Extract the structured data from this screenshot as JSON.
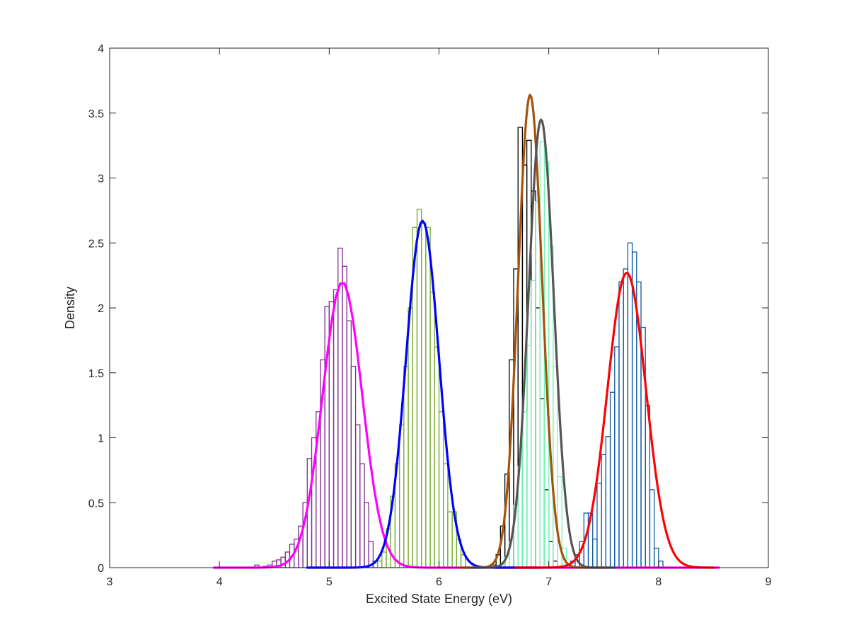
{
  "chart_data": {
    "type": "histogram",
    "title": "",
    "xlabel": "Excited State Energy (eV)",
    "ylabel": "Density",
    "xlim": [
      3,
      9
    ],
    "ylim": [
      0,
      4
    ],
    "xticks": [
      3,
      4,
      5,
      6,
      7,
      8,
      9
    ],
    "xtick_labels": [
      "3",
      "4",
      "5",
      "6",
      "7",
      "8",
      "9"
    ],
    "yticks": [
      0,
      0.5,
      1,
      1.5,
      2,
      2.5,
      3,
      3.5,
      4
    ],
    "ytick_labels": [
      "0",
      "0.5",
      "1",
      "1.5",
      "2",
      "2.5",
      "3",
      "3.5",
      "4"
    ],
    "grid": false,
    "legend": "none",
    "histograms": [
      {
        "color": "#7e2f8e",
        "x0": 4.32,
        "bin_width": 0.04,
        "values": [
          0.02,
          0.0,
          0.01,
          0.02,
          0.05,
          0.06,
          0.08,
          0.12,
          0.18,
          0.22,
          0.32,
          0.5,
          0.84,
          1.0,
          1.2,
          1.6,
          2.01,
          2.05,
          2.14,
          2.46,
          2.32,
          1.9,
          1.55,
          1.1,
          0.8,
          0.5,
          0.2,
          0.05
        ]
      },
      {
        "color": "#77ac30",
        "x0": 5.44,
        "bin_width": 0.04,
        "values": [
          0.05,
          0.12,
          0.3,
          0.55,
          0.8,
          1.1,
          1.55,
          2.0,
          2.62,
          2.76,
          2.65,
          2.62,
          2.12,
          1.7,
          1.2,
          0.8,
          0.43,
          0.43,
          0.22,
          0.1
        ]
      },
      {
        "color": "#000000",
        "x0": 6.48,
        "bin_width": 0.04,
        "values": [
          0.02,
          0.1,
          0.32,
          0.72,
          1.6,
          2.3,
          3.39,
          3.1,
          3.29,
          2.9,
          2.0,
          1.3,
          0.6,
          0.2,
          0.05
        ]
      },
      {
        "color": "#77f2b8",
        "x0": 6.56,
        "bin_width": 0.04,
        "values": [
          0.02,
          0.08,
          0.2,
          0.48,
          0.78,
          1.2,
          1.71,
          2.21,
          2.82,
          3.28,
          3.12,
          2.48,
          1.55,
          0.7,
          0.15,
          0.02
        ]
      },
      {
        "color": "#0e5aa3",
        "x0": 7.2,
        "bin_width": 0.04,
        "values": [
          0.05,
          0.1,
          0.2,
          0.42,
          0.42,
          0.22,
          0.65,
          0.87,
          1.01,
          1.35,
          1.7,
          2.2,
          2.3,
          2.5,
          2.43,
          2.2,
          1.85,
          1.25,
          0.6,
          0.15,
          0.05
        ]
      }
    ],
    "series": [
      {
        "color": "#ff00ff",
        "mu": 5.12,
        "sigma": 0.18,
        "peak": 2.2,
        "x_range": [
          3.95,
          8.55
        ]
      },
      {
        "color": "#0000ff",
        "mu": 5.85,
        "sigma": 0.15,
        "peak": 2.67,
        "x_range": [
          4.8,
          6.9
        ]
      },
      {
        "color": "#a5520b",
        "mu": 6.83,
        "sigma": 0.11,
        "peak": 3.64,
        "x_range": [
          6.2,
          7.5
        ]
      },
      {
        "color": "#555555",
        "mu": 6.93,
        "sigma": 0.115,
        "peak": 3.45,
        "x_range": [
          6.3,
          7.6
        ]
      },
      {
        "color": "#ff0000",
        "mu": 7.71,
        "sigma": 0.175,
        "peak": 2.27,
        "x_range": [
          6.7,
          8.5
        ]
      }
    ]
  }
}
